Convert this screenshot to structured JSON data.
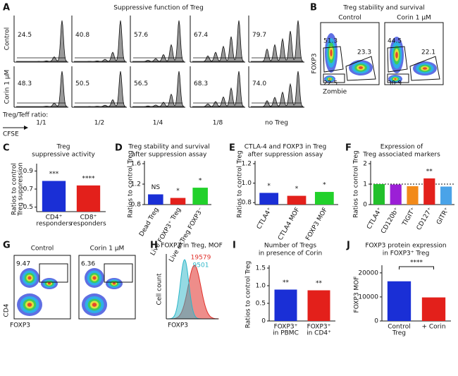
{
  "panels": {
    "A": {
      "letter": "A",
      "title": "Suppressive function of Treg",
      "rows": [
        "Control",
        "Corin 1 μM"
      ],
      "gates": [
        [
          "24.5",
          "40.8",
          "57.6",
          "67.4",
          "79.7"
        ],
        [
          "48.3",
          "50.5",
          "56.5",
          "68.3",
          "74.0"
        ]
      ],
      "ratio_label": "Treg/Teff ratio:",
      "ratios": [
        "1/1",
        "1/2",
        "1/4",
        "1/8",
        "no Treg"
      ],
      "x_label": "CFSE"
    },
    "B": {
      "letter": "B",
      "title": "Treg stability and survival",
      "columns": [
        "Control",
        "Corin 1 μM"
      ],
      "gates": [
        [
          "51.3",
          "23.3",
          "22.5"
        ],
        [
          "44.5",
          "22.1",
          "30.9"
        ]
      ],
      "y_label": "FOXP3",
      "x_label": "Zombie"
    },
    "G": {
      "letter": "G",
      "columns": [
        "Control",
        "Corin 1 μM"
      ],
      "gates": [
        "9.47",
        "6.36"
      ],
      "y_label": "CD4",
      "x_label": "FOXP3"
    },
    "H": {
      "letter": "H",
      "title": "FOXP3 in Treg, MOF",
      "legend": [
        {
          "label": "19579",
          "color": "#e0302a"
        },
        {
          "label": "9501",
          "color": "#2bb6c8"
        }
      ],
      "y_label": "Cell count",
      "x_label": "FOXP3"
    }
  },
  "chart_data": [
    {
      "type": "bar",
      "letter": "C",
      "title": [
        "Treg",
        "suppressive activity"
      ],
      "y_label": [
        "Ratios to control",
        "Treg suppression"
      ],
      "categories": [
        [
          "CD4⁺",
          "responders"
        ],
        [
          "CD8⁺",
          "responders"
        ]
      ],
      "values": [
        0.79,
        0.74
      ],
      "colors": [
        "#1a2fd6",
        "#e3201b"
      ],
      "stars": [
        "***",
        "****"
      ],
      "ylim": [
        0.45,
        0.95
      ],
      "yticks": [
        0.5,
        0.7,
        0.9
      ]
    },
    {
      "type": "bar",
      "letter": "D",
      "title": [
        "Treg stability and survival",
        "after suppression assay"
      ],
      "y_label": [
        "Ratios to control Treg"
      ],
      "categories": [
        "Dead Treg",
        "Live FOXP3⁺ Treg",
        "Live exTreg FOXP3⁻"
      ],
      "values": [
        1.0,
        0.93,
        1.13
      ],
      "colors": [
        "#1a2fd6",
        "#e3201b",
        "#22d12b"
      ],
      "stars": [
        "NS",
        "*",
        "*"
      ],
      "ylim": [
        0.8,
        1.6
      ],
      "yticks": [
        0.8,
        1.2,
        1.6
      ]
    },
    {
      "type": "bar",
      "letter": "E",
      "title": [
        "CTLA-4 and FOXP3 in Treg",
        "after suppression assay"
      ],
      "y_label": [
        "Ratios to control Treg"
      ],
      "categories": [
        "CTLA4⁺",
        "CTLA4 MOF",
        "FOXP3 MOF"
      ],
      "values": [
        0.9,
        0.87,
        0.91
      ],
      "colors": [
        "#1a2fd6",
        "#e3201b",
        "#22d12b"
      ],
      "stars": [
        "*",
        "*",
        "*"
      ],
      "ylim": [
        0.78,
        1.2
      ],
      "yticks": [
        0.8,
        {
          "value": 1,
          "label": "1.0"
        },
        1.2
      ]
    },
    {
      "type": "bar",
      "letter": "F",
      "title": [
        "Expression of",
        "Treg associated markers"
      ],
      "y_label": [
        "Ratios to control Treg"
      ],
      "categories": [
        "CTLA4⁺",
        "CD120b⁺",
        "TIGIT⁺",
        "CD127⁺",
        "GITR⁺"
      ],
      "values": [
        1.0,
        0.98,
        0.9,
        1.28,
        0.88
      ],
      "colors": [
        "#22c02b",
        "#9b1fd6",
        "#f28a1a",
        "#e3201b",
        "#4aa3e8"
      ],
      "stars": [
        null,
        null,
        null,
        "**",
        null
      ],
      "ylim": [
        0,
        2
      ],
      "yticks": [
        0,
        1,
        2
      ],
      "reference_line": 1
    },
    {
      "type": "bar",
      "letter": "I",
      "title": [
        "Number of Tregs",
        "in presence of Corin"
      ],
      "y_label": [
        "Ratios to control Treg"
      ],
      "categories": [
        [
          "FOXP3⁺",
          "in PBMC"
        ],
        [
          "FOXP3⁺",
          "in CD4⁺"
        ]
      ],
      "values": [
        0.89,
        0.87
      ],
      "colors": [
        "#1a2fd6",
        "#e3201b"
      ],
      "stars": [
        "**",
        "**"
      ],
      "ylim": [
        0,
        1.5
      ],
      "yticks": [
        0,
        0.5,
        {
          "value": 1,
          "label": "1.0"
        },
        1.5
      ]
    },
    {
      "type": "bar",
      "letter": "J",
      "title": [
        "FOXP3 protein expression",
        "in FOXP3⁺ Treg"
      ],
      "y_label": [
        "FOXP3 MOF"
      ],
      "categories": [
        [
          "Control",
          "Treg"
        ],
        [
          "+ Corin"
        ]
      ],
      "values": [
        16500,
        9800
      ],
      "colors": [
        "#1a2fd6",
        "#e3201b"
      ],
      "comparison_label": "****",
      "ylim": [
        0,
        22000
      ],
      "yticks": [
        0,
        10000,
        20000
      ]
    }
  ]
}
